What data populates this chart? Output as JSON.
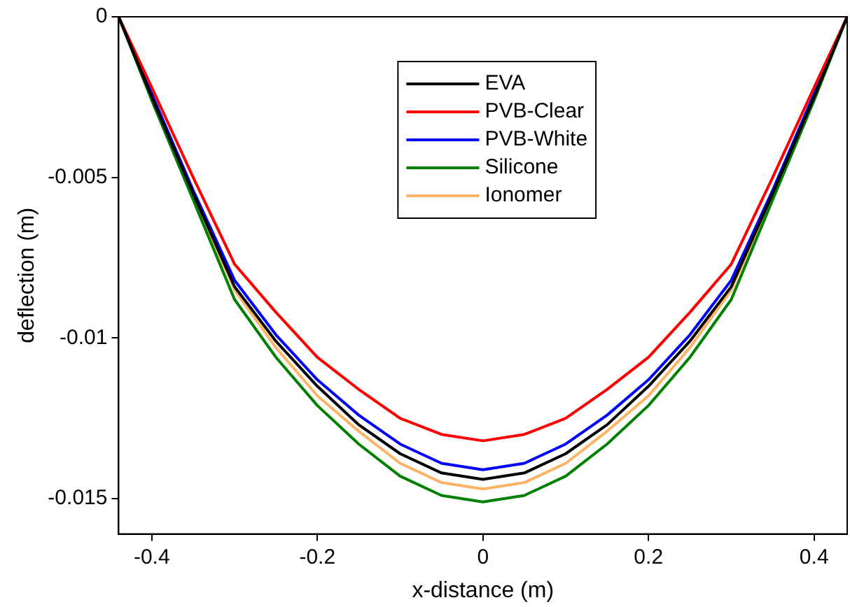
{
  "chart_data": {
    "type": "line",
    "xlabel": "x-distance (m)",
    "ylabel": "deflection (m)",
    "x": [
      -0.44,
      -0.4,
      -0.35,
      -0.3,
      -0.25,
      -0.2,
      -0.15,
      -0.1,
      -0.05,
      0,
      0.05,
      0.1,
      0.15,
      0.2,
      0.25,
      0.3,
      0.35,
      0.4,
      0.44
    ],
    "xlim": [
      -0.44,
      0.44
    ],
    "xticks": [
      -0.4,
      -0.2,
      0,
      0.2,
      0.4
    ],
    "ylim": [
      -0.0161,
      0
    ],
    "yticks": [
      -0.015,
      -0.01,
      -0.005,
      0
    ],
    "grid": false,
    "legend": "top",
    "marker": "none",
    "line_style": "solid",
    "series": [
      {
        "name": "EVA",
        "color": "#000000",
        "values": [
          0,
          -0.0025,
          -0.0055,
          -0.0084,
          -0.0101,
          -0.0115,
          -0.0127,
          -0.0136,
          -0.0142,
          -0.0144,
          -0.0142,
          -0.0136,
          -0.0127,
          -0.0115,
          -0.0101,
          -0.0084,
          -0.0055,
          -0.0025,
          0
        ]
      },
      {
        "name": "PVB-Clear",
        "color": "#ff0000",
        "values": [
          0,
          -0.0022,
          -0.005,
          -0.0077,
          -0.0092,
          -0.0106,
          -0.0116,
          -0.0125,
          -0.013,
          -0.0132,
          -0.013,
          -0.0125,
          -0.0116,
          -0.0106,
          -0.0092,
          -0.0077,
          -0.005,
          -0.0022,
          0
        ]
      },
      {
        "name": "PVB-White",
        "color": "#0000ff",
        "values": [
          0,
          -0.0024,
          -0.0054,
          -0.0082,
          -0.0099,
          -0.0113,
          -0.0124,
          -0.0133,
          -0.0139,
          -0.0141,
          -0.0139,
          -0.0133,
          -0.0124,
          -0.0113,
          -0.0099,
          -0.0082,
          -0.0054,
          -0.0024,
          0
        ]
      },
      {
        "name": "Silicone",
        "color": "#008000",
        "values": [
          0,
          -0.0026,
          -0.0057,
          -0.0088,
          -0.0106,
          -0.0121,
          -0.0133,
          -0.0143,
          -0.0149,
          -0.0151,
          -0.0149,
          -0.0143,
          -0.0133,
          -0.0121,
          -0.0106,
          -0.0088,
          -0.0057,
          -0.0026,
          0
        ]
      },
      {
        "name": "Ionomer",
        "color": "#ffb366",
        "values": [
          0,
          -0.0025,
          -0.0056,
          -0.0085,
          -0.0103,
          -0.0118,
          -0.0129,
          -0.0139,
          -0.0145,
          -0.0147,
          -0.0145,
          -0.0139,
          -0.0129,
          -0.0118,
          -0.0103,
          -0.0085,
          -0.0056,
          -0.0025,
          0
        ]
      }
    ]
  }
}
